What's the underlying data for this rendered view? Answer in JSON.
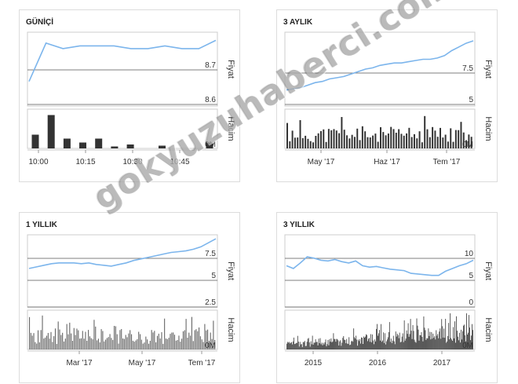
{
  "watermark": "gokyuzuhaberci.com",
  "colors": {
    "price": "#7cb5ec",
    "volume": "#333333",
    "grid": "#555555",
    "frame": "#cccccc"
  },
  "chart_data": [
    {
      "title": "GÜNİÇİ",
      "type": "line",
      "price_axis_label": "Fiyat",
      "volume_axis_label": "Hacim",
      "price_ticks": [
        "8.7",
        "8.6"
      ],
      "volume_tick": "0M",
      "x_ticks": [
        "10:00",
        "10:15",
        "10:30",
        "10:45"
      ],
      "price_series": [
        8.64,
        8.78,
        8.76,
        8.77,
        8.77,
        8.77,
        8.76,
        8.76,
        8.77,
        8.76,
        8.76,
        8.79
      ],
      "volume_series": [
        0.35,
        0.85,
        0.25,
        0.15,
        0.25,
        0.05,
        0.1,
        0.0,
        0.07,
        0.0,
        0.0,
        0.15
      ]
    },
    {
      "title": "3 AYLIK",
      "type": "line",
      "price_axis_label": "Fiyat",
      "volume_axis_label": "Hacim",
      "price_ticks": [
        "7.5",
        "5"
      ],
      "volume_tick": "0M",
      "x_ticks": [
        "May '17",
        "Haz '17",
        "Tem '17"
      ],
      "price_series": [
        4.8,
        4.9,
        5.0,
        5.2,
        5.4,
        5.5,
        5.7,
        5.8,
        5.9,
        6.1,
        6.3,
        6.5,
        6.6,
        6.8,
        6.9,
        7.0,
        7.0,
        7.1,
        7.2,
        7.3,
        7.3,
        7.4,
        7.6,
        8.0,
        8.3,
        8.6,
        8.8
      ]
    },
    {
      "title": "1 YILLIK",
      "type": "line",
      "price_axis_label": "Fiyat",
      "volume_axis_label": "Hacim",
      "price_ticks": [
        "7.5",
        "5",
        "2.5"
      ],
      "volume_tick": "0M",
      "x_ticks": [
        "Mar '17",
        "May '17",
        "Tem '17"
      ],
      "price_series": [
        4.8,
        5.0,
        5.2,
        5.4,
        5.5,
        5.5,
        5.5,
        5.4,
        5.5,
        5.3,
        5.2,
        5.1,
        5.3,
        5.5,
        5.8,
        6.0,
        6.2,
        6.4,
        6.6,
        6.8,
        6.9,
        7.0,
        7.2,
        7.5,
        8.0,
        8.5
      ]
    },
    {
      "title": "3 YILLIK",
      "type": "line",
      "price_axis_label": "Fiyat",
      "volume_axis_label": "Hacim",
      "price_ticks": [
        "10",
        "5",
        "0"
      ],
      "volume_tick": "0M",
      "x_ticks": [
        "2015",
        "2016",
        "2017"
      ],
      "price_series": [
        6.0,
        5.6,
        6.4,
        7.3,
        7.1,
        6.8,
        6.7,
        6.9,
        6.6,
        6.4,
        6.7,
        6.0,
        5.8,
        5.9,
        5.7,
        5.5,
        5.4,
        5.3,
        4.9,
        4.8,
        4.7,
        4.6,
        4.6,
        5.2,
        5.6,
        6.0,
        6.3,
        6.8
      ]
    }
  ]
}
